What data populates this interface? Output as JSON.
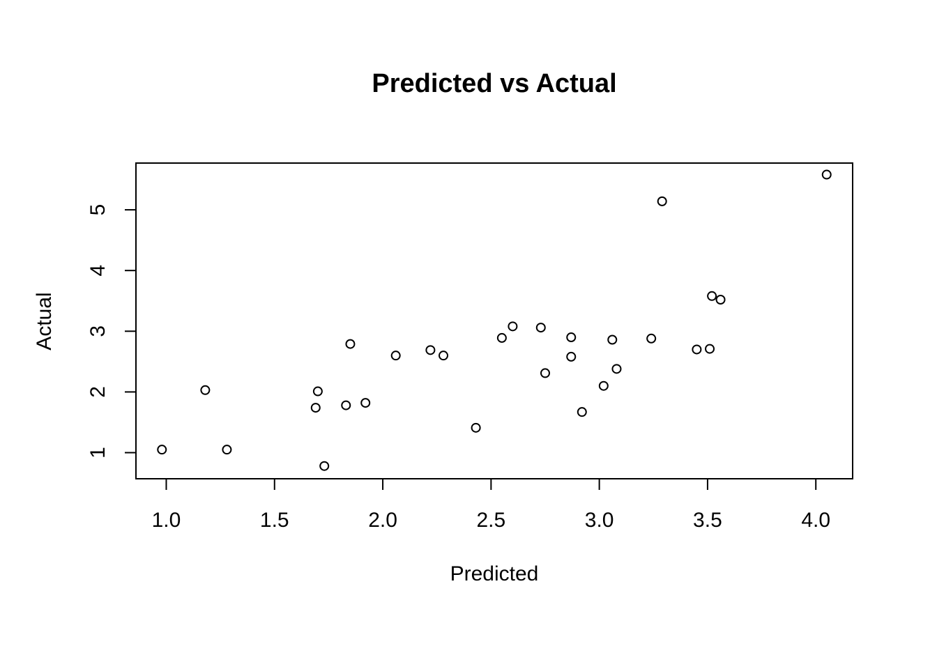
{
  "chart_data": {
    "type": "scatter",
    "title": "Predicted vs Actual",
    "xlabel": "Predicted",
    "ylabel": "Actual",
    "xlim": [
      0.86,
      4.17
    ],
    "ylim": [
      0.57,
      5.77
    ],
    "x_ticks": [
      1.0,
      1.5,
      2.0,
      2.5,
      3.0,
      3.5,
      4.0
    ],
    "x_tick_labels": [
      "1.0",
      "1.5",
      "2.0",
      "2.5",
      "3.0",
      "3.5",
      "4.0"
    ],
    "y_ticks": [
      1,
      2,
      3,
      4,
      5
    ],
    "y_tick_labels": [
      "1",
      "2",
      "3",
      "4",
      "5"
    ],
    "grid": false,
    "legend": "none",
    "marker": "open-circle",
    "colors": {
      "points": "#000000",
      "axes": "#000000",
      "background": "#ffffff"
    },
    "points": [
      {
        "x": 0.98,
        "y": 1.05
      },
      {
        "x": 1.18,
        "y": 2.03
      },
      {
        "x": 1.28,
        "y": 1.05
      },
      {
        "x": 1.7,
        "y": 2.01
      },
      {
        "x": 1.69,
        "y": 1.74
      },
      {
        "x": 1.73,
        "y": 0.78
      },
      {
        "x": 1.83,
        "y": 1.78
      },
      {
        "x": 1.85,
        "y": 2.79
      },
      {
        "x": 1.92,
        "y": 1.82
      },
      {
        "x": 2.06,
        "y": 2.6
      },
      {
        "x": 2.22,
        "y": 2.69
      },
      {
        "x": 2.28,
        "y": 2.6
      },
      {
        "x": 2.43,
        "y": 1.41
      },
      {
        "x": 2.55,
        "y": 2.89
      },
      {
        "x": 2.6,
        "y": 3.08
      },
      {
        "x": 2.73,
        "y": 3.06
      },
      {
        "x": 2.75,
        "y": 2.31
      },
      {
        "x": 2.87,
        "y": 2.9
      },
      {
        "x": 2.87,
        "y": 2.58
      },
      {
        "x": 2.92,
        "y": 1.67
      },
      {
        "x": 3.02,
        "y": 2.1
      },
      {
        "x": 3.06,
        "y": 2.86
      },
      {
        "x": 3.08,
        "y": 2.38
      },
      {
        "x": 3.24,
        "y": 2.88
      },
      {
        "x": 3.29,
        "y": 5.14
      },
      {
        "x": 3.45,
        "y": 2.7
      },
      {
        "x": 3.51,
        "y": 2.71
      },
      {
        "x": 3.52,
        "y": 3.58
      },
      {
        "x": 3.56,
        "y": 3.52
      },
      {
        "x": 4.05,
        "y": 5.58
      }
    ]
  }
}
